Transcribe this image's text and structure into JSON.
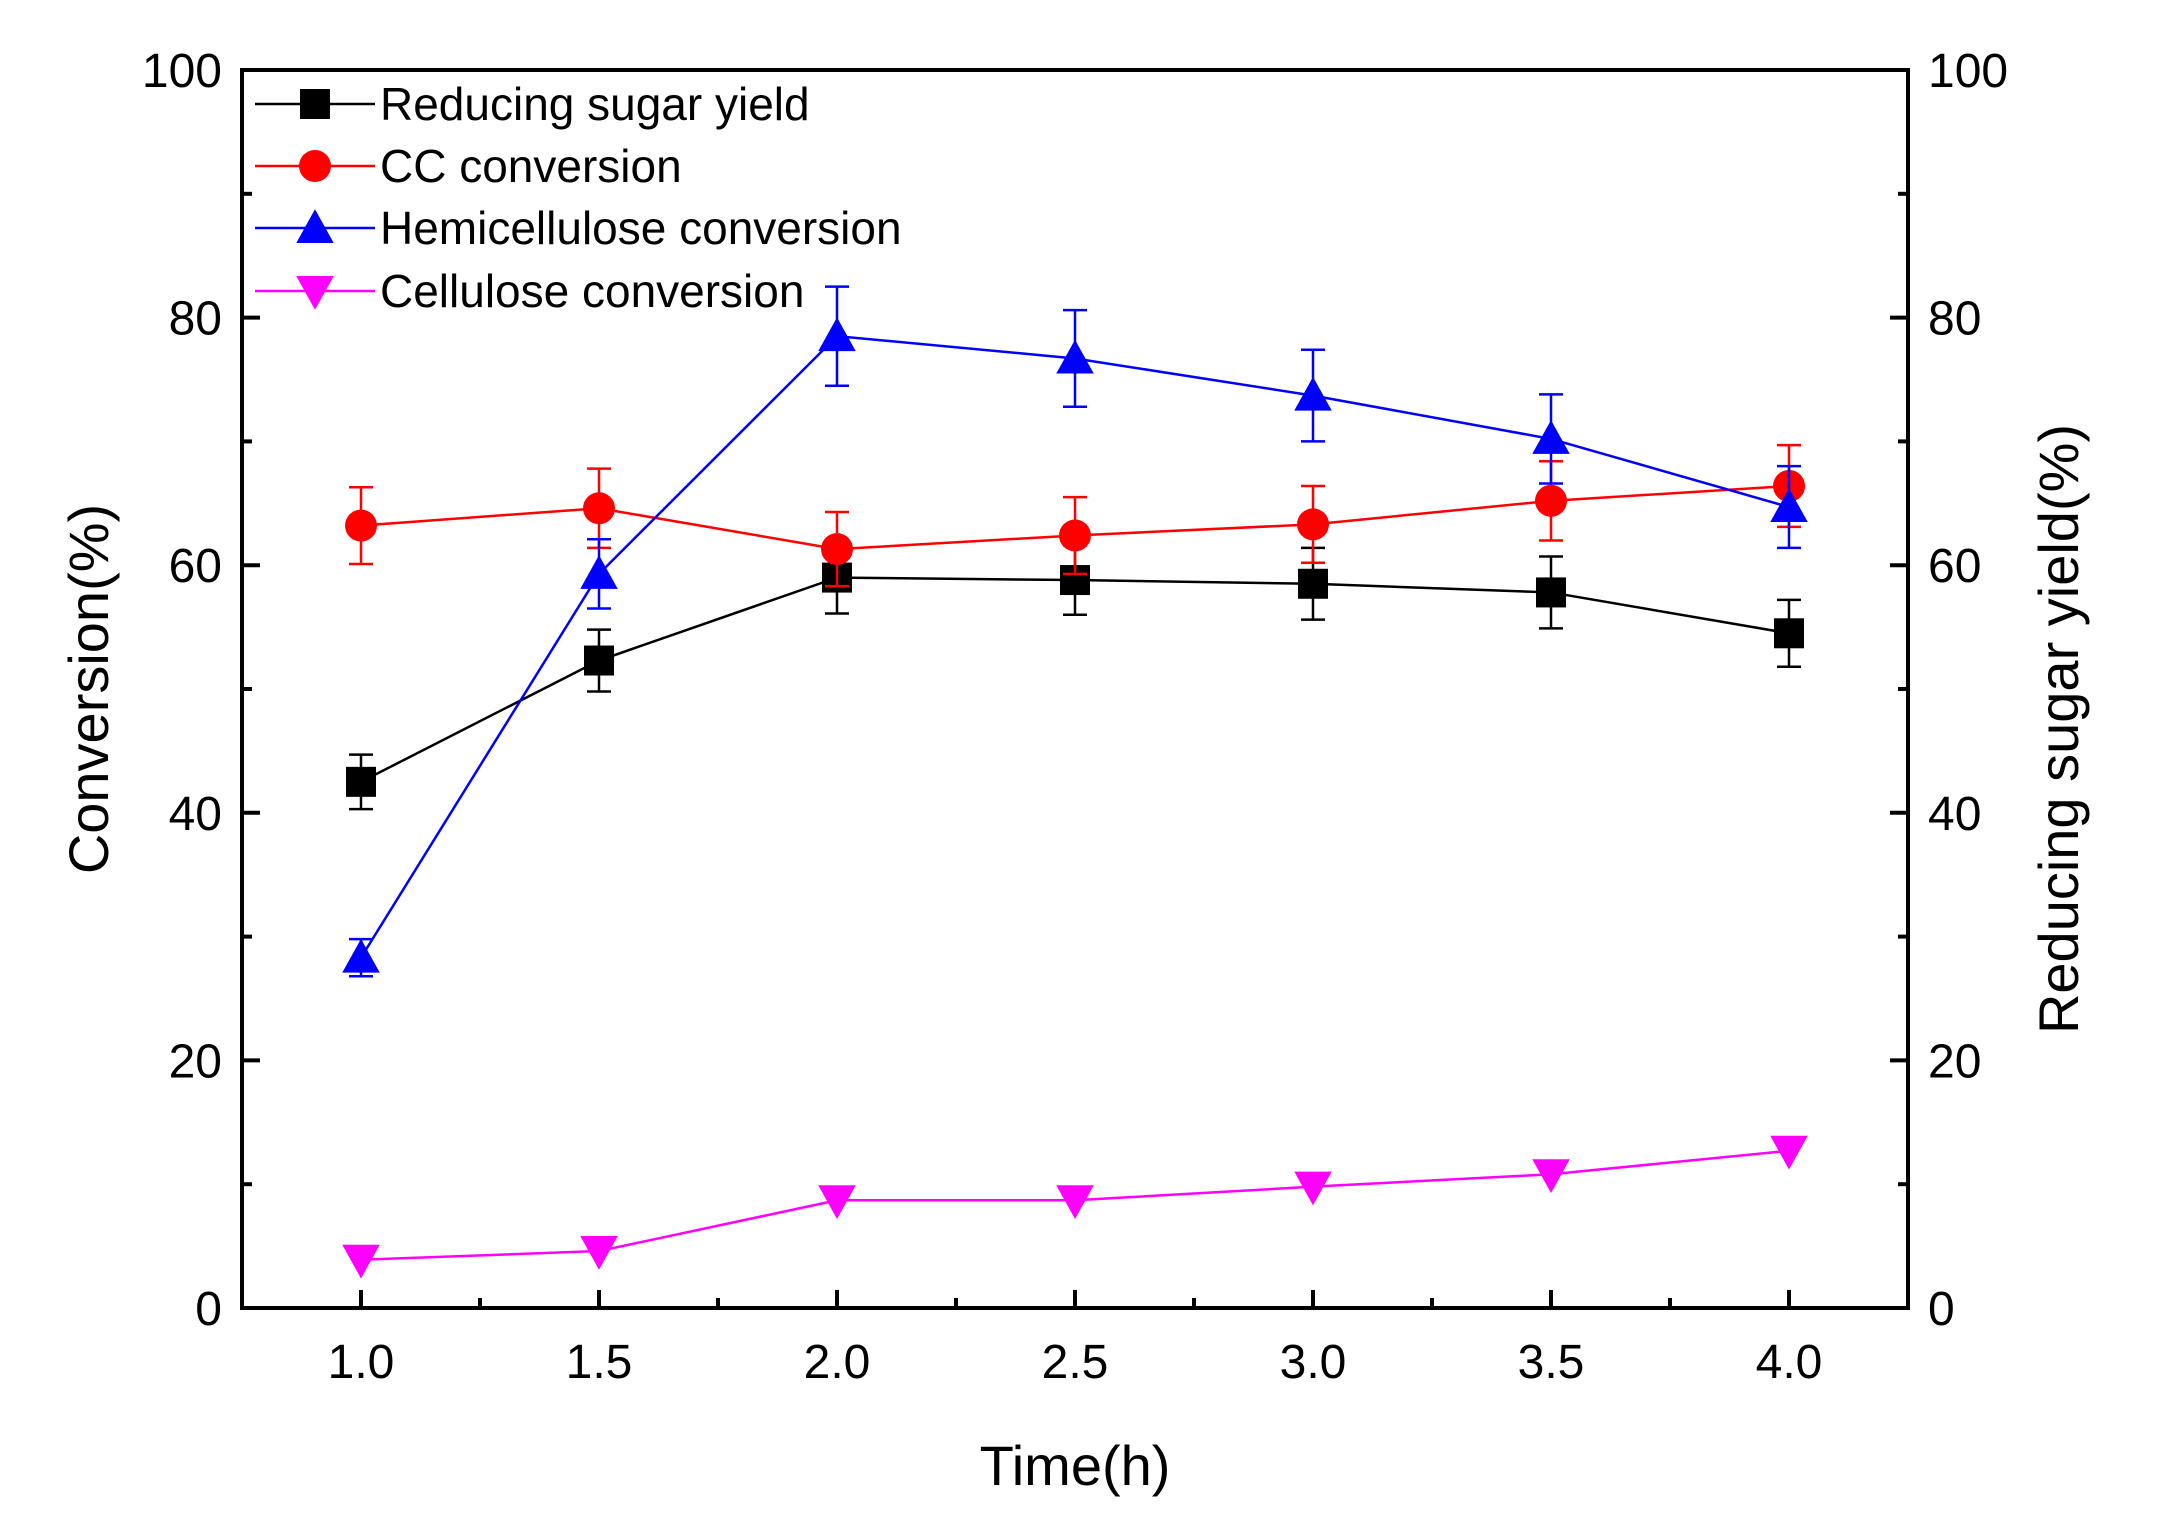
{
  "chart_data": {
    "type": "line",
    "title": "",
    "xlabel": "Time(h)",
    "ylabel": "Conversion(%)",
    "y2label": "Reducing sugar yield(%)",
    "xlim": [
      0.75,
      4.25
    ],
    "ylim": [
      0,
      100
    ],
    "y2lim": [
      0,
      100
    ],
    "x_ticks": [
      1.0,
      1.5,
      2.0,
      2.5,
      3.0,
      3.5,
      4.0
    ],
    "x_tick_labels": [
      "1.0",
      "1.5",
      "2.0",
      "2.5",
      "3.0",
      "3.5",
      "4.0"
    ],
    "y_ticks": [
      0,
      20,
      40,
      60,
      80,
      100
    ],
    "y_tick_labels": [
      "0",
      "20",
      "40",
      "60",
      "80",
      "100"
    ],
    "y2_ticks": [
      0,
      20,
      40,
      60,
      80,
      100
    ],
    "y2_tick_labels": [
      "0",
      "20",
      "40",
      "60",
      "80",
      "100"
    ],
    "grid": false,
    "legend_position": "top-left",
    "x": [
      1.0,
      1.5,
      2.0,
      2.5,
      3.0,
      3.5,
      4.0
    ],
    "series": [
      {
        "name": "Reducing sugar yield",
        "color": "#000000",
        "marker": "square",
        "axis": "right",
        "values": [
          42.5,
          52.3,
          59.0,
          58.8,
          58.5,
          57.8,
          54.5
        ],
        "errors": [
          2.2,
          2.5,
          2.9,
          2.8,
          2.9,
          2.9,
          2.7
        ]
      },
      {
        "name": "CC conversion",
        "color": "#ff0000",
        "marker": "circle",
        "axis": "left",
        "values": [
          63.2,
          64.6,
          61.3,
          62.4,
          63.3,
          65.2,
          66.4
        ],
        "errors": [
          3.1,
          3.2,
          3.0,
          3.1,
          3.1,
          3.2,
          3.3
        ]
      },
      {
        "name": "Hemicellulose conversion",
        "color": "#0000ff",
        "marker": "triangle-up",
        "axis": "left",
        "values": [
          28.3,
          59.3,
          78.5,
          76.7,
          73.7,
          70.2,
          64.7
        ],
        "errors": [
          1.5,
          2.8,
          4.0,
          3.9,
          3.7,
          3.6,
          3.3
        ]
      },
      {
        "name": "Cellulose conversion",
        "color": "#ff00ff",
        "marker": "triangle-down",
        "axis": "left",
        "values": [
          3.9,
          4.6,
          8.7,
          8.7,
          9.8,
          10.8,
          12.7
        ],
        "errors": [
          0,
          0,
          0,
          0,
          0,
          0,
          0
        ]
      }
    ]
  }
}
